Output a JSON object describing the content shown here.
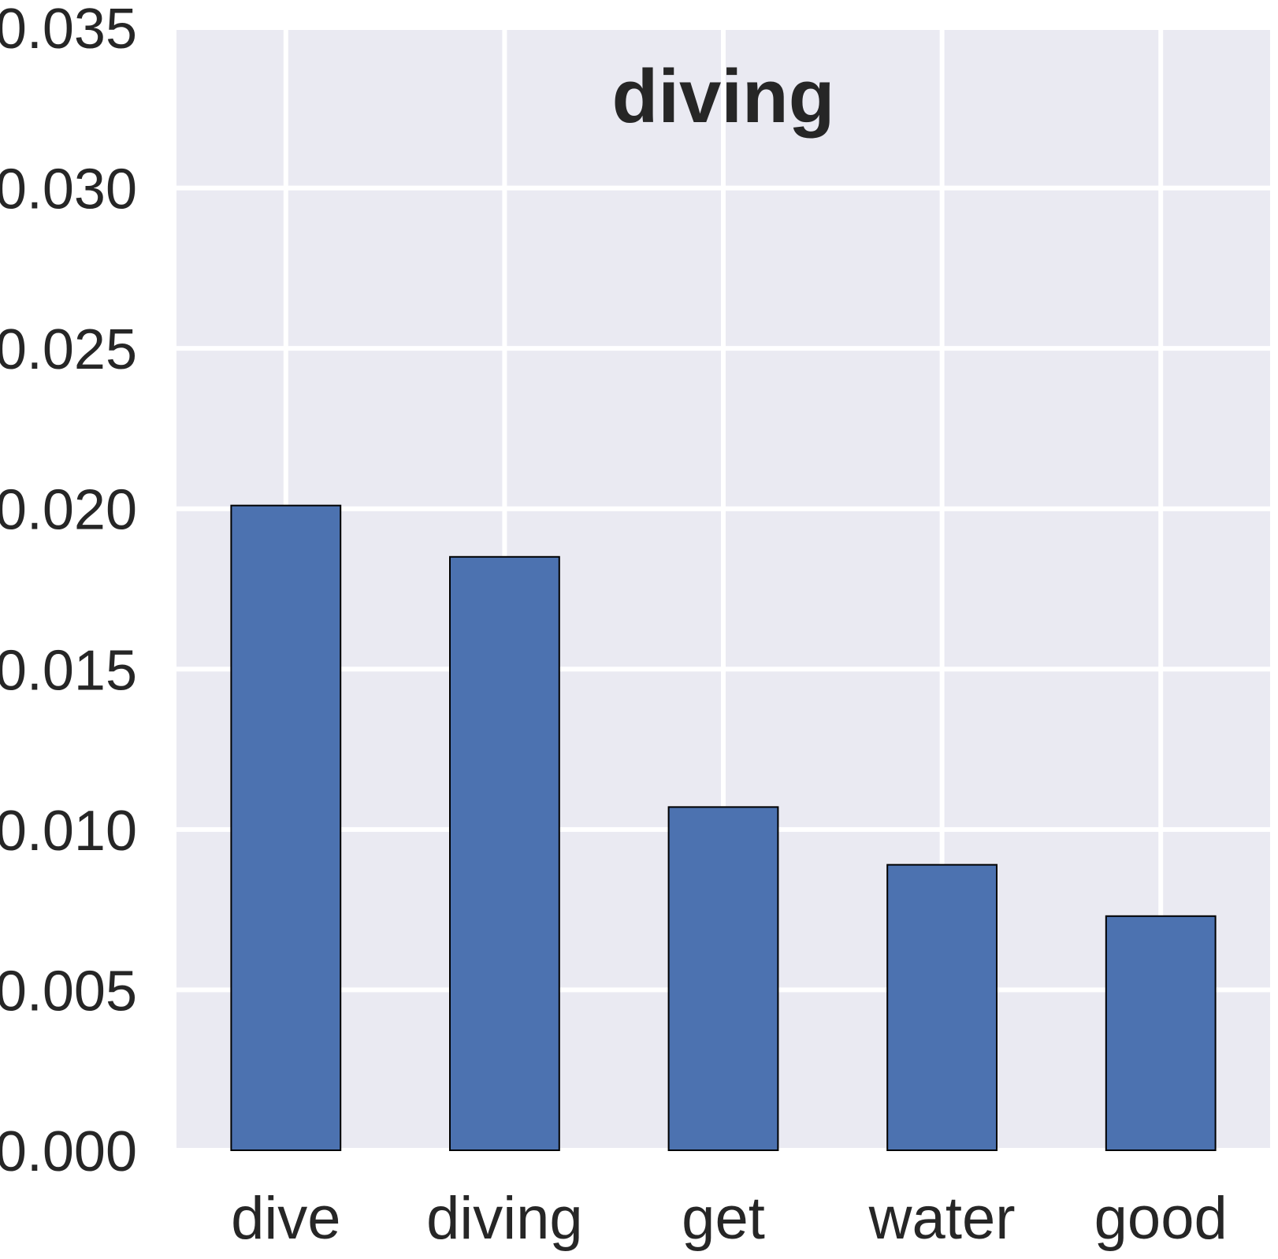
{
  "chart_data": {
    "type": "bar",
    "title": "diving",
    "xlabel": "",
    "ylabel": "",
    "categories": [
      "dive",
      "diving",
      "get",
      "water",
      "good"
    ],
    "values": [
      0.0201,
      0.0185,
      0.0107,
      0.0089,
      0.0073
    ],
    "ylim": [
      0,
      0.035
    ],
    "yticks": [
      0.0,
      0.005,
      0.01,
      0.015,
      0.02,
      0.025,
      0.03,
      0.035
    ],
    "ytick_labels": [
      "0.000",
      "0.005",
      "0.010",
      "0.015",
      "0.020",
      "0.025",
      "0.030",
      "0.035"
    ],
    "grid": true,
    "colors": {
      "bar": "#4c72b0",
      "bar_edge": "#000000",
      "plot_background": "#eaeaf2",
      "grid": "#ffffff",
      "text": "#262626"
    }
  }
}
